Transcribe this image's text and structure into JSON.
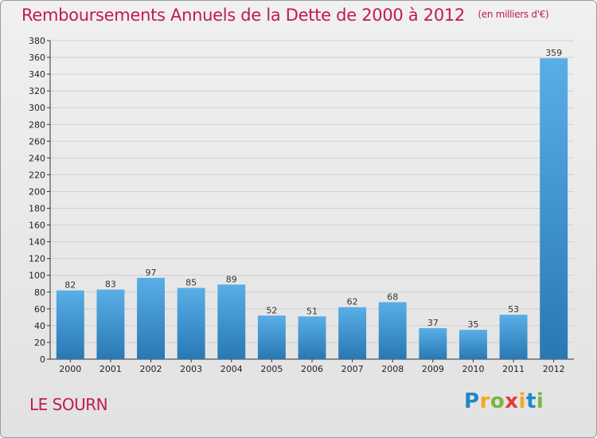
{
  "title": "Remboursements Annuels de la Dette de 2000 à 2012",
  "subtitle": "(en milliers d'€)",
  "place": "LE SOURN",
  "logo": {
    "letters": [
      "P",
      "r",
      "o",
      "x",
      "i",
      "t",
      "i"
    ],
    "colors": [
      "#1e88c8",
      "#f5a623",
      "#7cb342",
      "#e53935",
      "#f5a623",
      "#1e88c8",
      "#7cb342"
    ]
  },
  "colors": {
    "title": "#c2185b",
    "bar_top": "#5aaee6",
    "bar_bottom": "#2878b4",
    "axis": "#333333",
    "grid": "#d0d0d0"
  },
  "chart_data": {
    "type": "bar",
    "categories": [
      "2000",
      "2001",
      "2002",
      "2003",
      "2004",
      "2005",
      "2006",
      "2007",
      "2008",
      "2009",
      "2010",
      "2011",
      "2012"
    ],
    "values": [
      82,
      83,
      97,
      85,
      89,
      52,
      51,
      62,
      68,
      37,
      35,
      53,
      359
    ],
    "title": "Remboursements Annuels de la Dette de 2000 à 2012",
    "xlabel": "",
    "ylabel": "",
    "ylim": [
      0,
      380
    ],
    "yticks": [
      0,
      20,
      40,
      60,
      80,
      100,
      120,
      140,
      160,
      180,
      200,
      220,
      240,
      260,
      280,
      300,
      320,
      340,
      360,
      380
    ],
    "data_labels": true,
    "grid": true,
    "legend": "none"
  }
}
